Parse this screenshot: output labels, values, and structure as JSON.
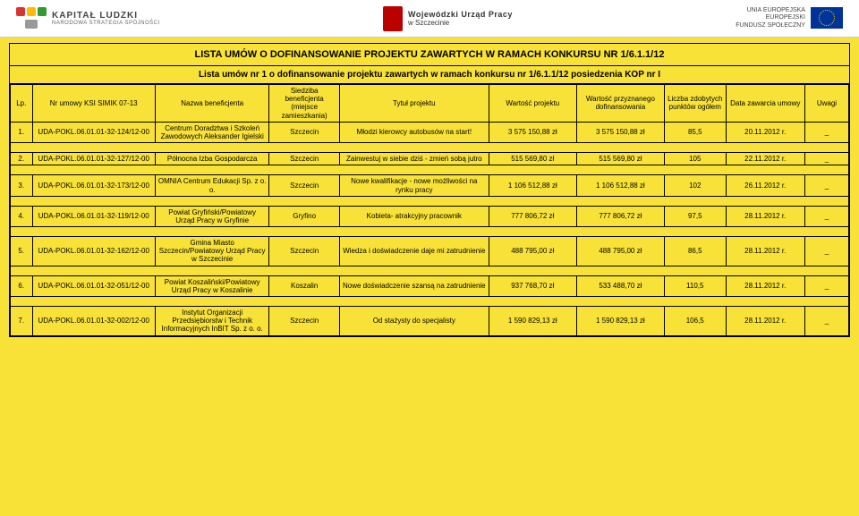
{
  "header": {
    "left_title": "KAPITAŁ LUDZKI",
    "left_sub": "NARODOWA STRATEGIA SPÓJNOŚCI",
    "mid_line1": "Wojewódzki Urząd Pracy",
    "mid_line2": "w Szczecinie",
    "right_line1": "UNIA EUROPEJSKA",
    "right_line2": "EUROPEJSKI",
    "right_line3": "FUNDUSZ SPOŁECZNY"
  },
  "title": "LISTA UMÓW O DOFINANSOWANIE PROJEKTU ZAWARTYCH W RAMACH KONKURSU NR 1/6.1.1/12",
  "subtitle": "Lista umów nr 1 o dofinansowanie projektu zawartych w ramach konkursu nr 1/6.1.1/12 posiedzenia KOP nr I",
  "columns": [
    "Lp.",
    "Nr umowy KSI SIMIK 07-13",
    "Nazwa beneficjenta",
    "Siedziba beneficjenta (miejsce zamieszkania)",
    "Tytuł projektu",
    "Wartość projektu",
    "Wartość przyznanego dofinansowania",
    "Liczba zdobytych punktów ogółem",
    "Data zawarcia umowy",
    "Uwagi"
  ],
  "rows": [
    {
      "lp": "1.",
      "nr": "UDA-POKL.06.01.01-32-124/12-00",
      "ben": "Centrum Doradztwa i Szkoleń Zawodowych Aleksander Igielski",
      "siedz": "Szczecin",
      "tytul": "Młodzi kierowcy autobusów na start!",
      "wart": "3 575 150,88 zł",
      "dof": "3 575 150,88 zł",
      "pkt": "85,5",
      "data": "20.11.2012 r.",
      "uw": "_"
    },
    {
      "lp": "2.",
      "nr": "UDA-POKL.06.01.01-32-127/12-00",
      "ben": "Północna Izba Gospodarcza",
      "siedz": "Szczecin",
      "tytul": "Zainwestuj w siebie dziś - zmień sobą jutro",
      "wart": "515 569,80 zł",
      "dof": "515 569,80 zł",
      "pkt": "105",
      "data": "22.11.2012 r.",
      "uw": "_"
    },
    {
      "lp": "3.",
      "nr": "UDA-POKL.06.01.01-32-173/12-00",
      "ben": "OMNIA Centrum Edukacji Sp. z o. o.",
      "siedz": "Szczecin",
      "tytul": "Nowe kwalifikacje - nowe możliwości na rynku pracy",
      "wart": "1 106 512,88 zł",
      "dof": "1 106 512,88 zł",
      "pkt": "102",
      "data": "26.11.2012 r.",
      "uw": "_"
    },
    {
      "lp": "4.",
      "nr": "UDA-POKL.06.01.01-32-119/12-00",
      "ben": "Powiat Gryfiński/Powiatowy Urząd Pracy w Gryfinie",
      "siedz": "Gryfino",
      "tytul": "Kobieta- atrakcyjny pracownik",
      "wart": "777 806,72 zł",
      "dof": "777 806,72 zł",
      "pkt": "97,5",
      "data": "28.11.2012 r.",
      "uw": "_"
    },
    {
      "lp": "5.",
      "nr": "UDA-POKL.06.01.01-32-162/12-00",
      "ben": "Gmina Miasto Szczecin/Powiatowy Urząd Pracy w Szczecinie",
      "siedz": "Szczecin",
      "tytul": "Wiedza i doświadczenie daje mi zatrudnienie",
      "wart": "488 795,00 zł",
      "dof": "488 795,00 zł",
      "pkt": "86,5",
      "data": "28.11.2012 r.",
      "uw": "_"
    },
    {
      "lp": "6.",
      "nr": "UDA-POKL.06.01.01-32-051/12-00",
      "ben": "Powiat Koszaliński/Powiatowy Urząd Pracy w Koszalinie",
      "siedz": "Koszalin",
      "tytul": "Nowe doświadczenie szansą na zatrudnienie",
      "wart": "937 768,70 zł",
      "dof": "533 488,70 zł",
      "pkt": "110,5",
      "data": "28.11.2012 r.",
      "uw": "_"
    },
    {
      "lp": "7.",
      "nr": "UDA-POKL.06.01.01-32-002/12-00",
      "ben": "Instytut Organizacji Przedsiębiorstw i Technik Informacyjnych InBIT Sp. z o. o.",
      "siedz": "Szczecin",
      "tytul": "Od stażysty do specjalisty",
      "wart": "1 590 829,13 zł",
      "dof": "1 590 829,13 zł",
      "pkt": "106,5",
      "data": "28.11.2012 r.",
      "uw": "_"
    }
  ],
  "colors": {
    "page_bg": "#f8e238",
    "border": "#000000",
    "header_bg": "#ffffff"
  }
}
